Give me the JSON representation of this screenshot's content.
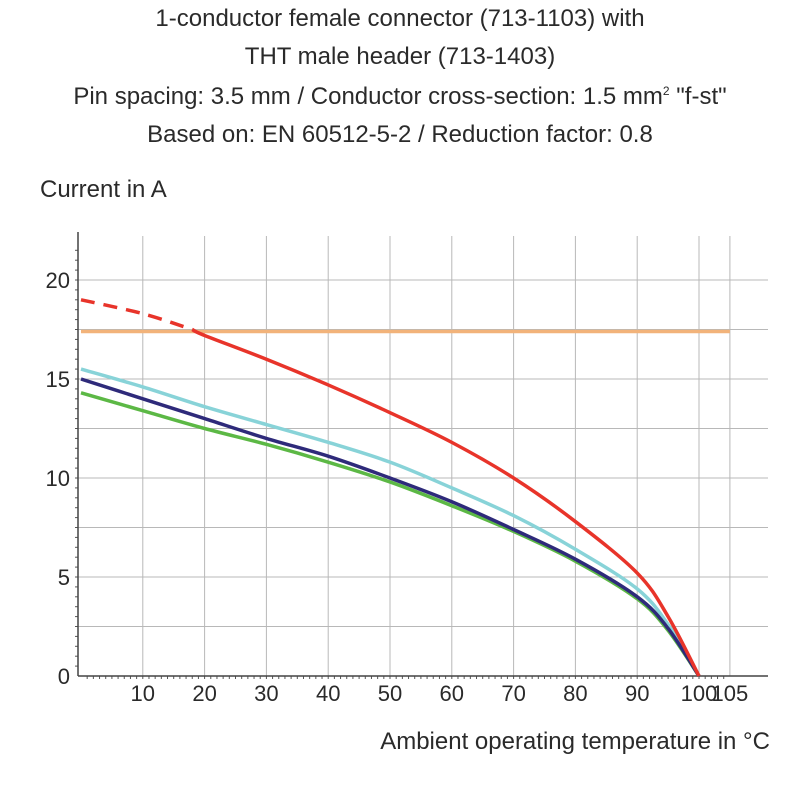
{
  "title_lines": [
    "1-conductor female connector (713-1103) with",
    "THT male header (713-1403)",
    "Pin spacing: 3.5 mm / Conductor cross-section: 1.5 mm",
    "Based on: EN 60512-5-2 / Reduction factor: 0.8"
  ],
  "title_line3_sup": "2",
  "title_line3_tail": " \"f-st\"",
  "chart_data": {
    "type": "line",
    "ylabel": "Current in A",
    "xlabel": "Ambient operating temperature in °C",
    "xlim": [
      0,
      105
    ],
    "ylim": [
      0,
      22
    ],
    "x_ticks": [
      10,
      20,
      30,
      40,
      50,
      60,
      70,
      80,
      90,
      100,
      105
    ],
    "y_ticks": [
      0,
      5,
      10,
      15,
      20
    ],
    "grid": true,
    "series": [
      {
        "color": "#e8342a",
        "dashed_until_x": 18,
        "points": [
          [
            0,
            19.0
          ],
          [
            10,
            18.3
          ],
          [
            18,
            17.5
          ],
          [
            20,
            17.2
          ],
          [
            30,
            16.0
          ],
          [
            40,
            14.7
          ],
          [
            50,
            13.3
          ],
          [
            60,
            11.8
          ],
          [
            70,
            10.0
          ],
          [
            80,
            7.8
          ],
          [
            90,
            5.2
          ],
          [
            95,
            3.0
          ],
          [
            100,
            0
          ]
        ]
      },
      {
        "color": "#f2b37a",
        "points": [
          [
            0,
            17.4
          ],
          [
            105,
            17.4
          ]
        ]
      },
      {
        "color": "#88d3d8",
        "points": [
          [
            0,
            15.5
          ],
          [
            10,
            14.6
          ],
          [
            20,
            13.6
          ],
          [
            30,
            12.7
          ],
          [
            40,
            11.8
          ],
          [
            50,
            10.8
          ],
          [
            60,
            9.5
          ],
          [
            70,
            8.1
          ],
          [
            80,
            6.4
          ],
          [
            90,
            4.4
          ],
          [
            95,
            2.6
          ],
          [
            100,
            0
          ]
        ]
      },
      {
        "color": "#2e2a7a",
        "points": [
          [
            0,
            15.0
          ],
          [
            10,
            14.0
          ],
          [
            20,
            13.0
          ],
          [
            30,
            12.0
          ],
          [
            40,
            11.1
          ],
          [
            50,
            10.0
          ],
          [
            60,
            8.8
          ],
          [
            70,
            7.4
          ],
          [
            80,
            5.9
          ],
          [
            90,
            4.0
          ],
          [
            95,
            2.4
          ],
          [
            100,
            0
          ]
        ]
      },
      {
        "color": "#5cb845",
        "points": [
          [
            0,
            14.3
          ],
          [
            10,
            13.4
          ],
          [
            20,
            12.5
          ],
          [
            30,
            11.7
          ],
          [
            40,
            10.8
          ],
          [
            50,
            9.8
          ],
          [
            60,
            8.6
          ],
          [
            70,
            7.3
          ],
          [
            80,
            5.8
          ],
          [
            90,
            3.9
          ],
          [
            95,
            2.3
          ],
          [
            100,
            0
          ]
        ]
      }
    ]
  }
}
